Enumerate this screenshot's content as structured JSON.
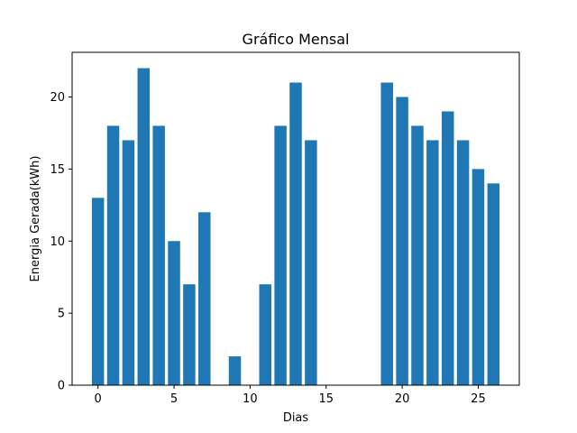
{
  "chart_data": {
    "type": "bar",
    "title": "Gráfico Mensal",
    "xlabel": "Dias",
    "ylabel": "Energia Gerada(kWh)",
    "x": [
      0,
      1,
      2,
      3,
      4,
      5,
      6,
      7,
      8,
      9,
      10,
      11,
      12,
      13,
      14,
      15,
      16,
      17,
      18,
      19,
      20,
      21,
      22,
      23,
      24,
      25,
      26
    ],
    "values": [
      13,
      18,
      17,
      22,
      18,
      10,
      7,
      12,
      0,
      2,
      0,
      7,
      18,
      21,
      17,
      0,
      0,
      0,
      0,
      21,
      20,
      18,
      17,
      19,
      17,
      15,
      14
    ],
    "xlim": [
      -1.7,
      27.7
    ],
    "ylim": [
      0,
      23.1
    ],
    "xticks": [
      0,
      5,
      10,
      15,
      20,
      25
    ],
    "yticks": [
      0,
      5,
      10,
      15,
      20
    ],
    "bar_color": "#1f77b4",
    "grid": false
  }
}
